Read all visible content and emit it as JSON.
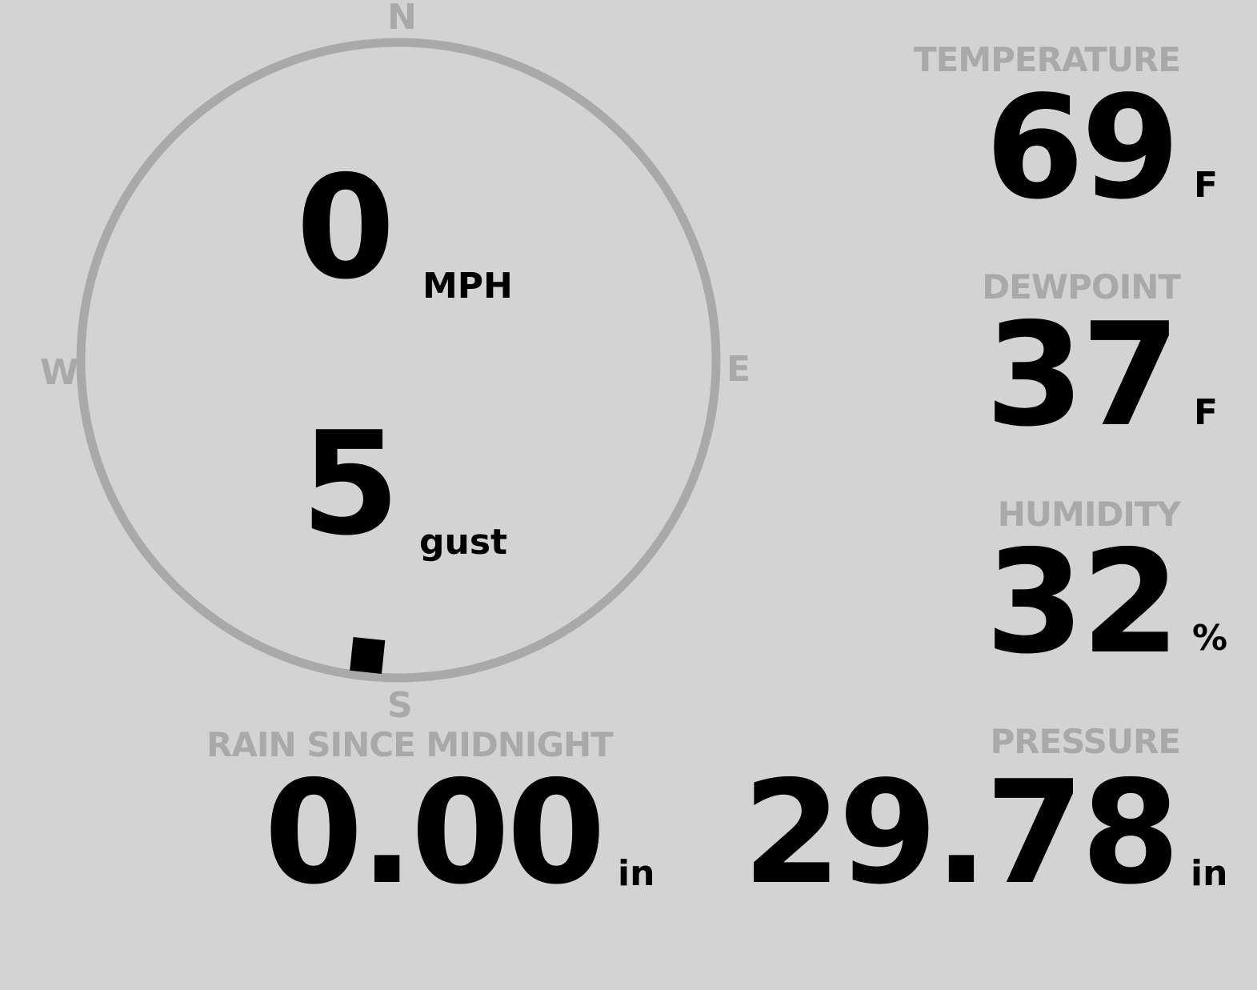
{
  "compass": {
    "north": "N",
    "south": "S",
    "east": "E",
    "west": "W",
    "wind_direction_degrees": 186,
    "ring_color": "#a9a9a9",
    "indicator_color": "#000000"
  },
  "wind": {
    "speed": "0",
    "speed_unit": "MPH",
    "gust": "5",
    "gust_unit": "gust"
  },
  "temperature": {
    "label": "TEMPERATURE",
    "value": "69",
    "unit": "F"
  },
  "dewpoint": {
    "label": "DEWPOINT",
    "value": "37",
    "unit": "F"
  },
  "humidity": {
    "label": "HUMIDITY",
    "value": "32",
    "unit": "%"
  },
  "rain": {
    "label": "RAIN SINCE MIDNIGHT",
    "value": "0.00",
    "unit": "in"
  },
  "pressure": {
    "label": "PRESSURE",
    "value": "29.78",
    "unit": "in"
  }
}
